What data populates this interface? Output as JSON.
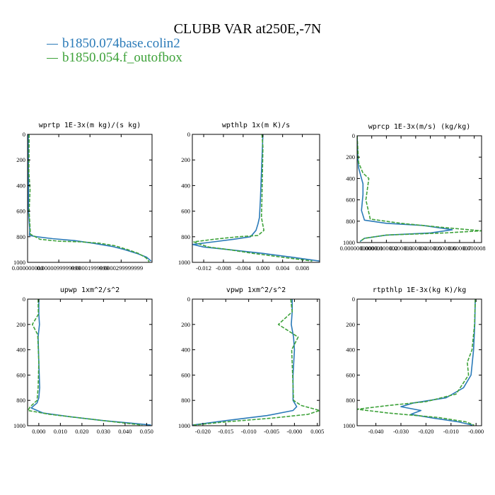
{
  "title": "CLUBB VAR at250E,-7N",
  "legend": [
    {
      "label": "b1850.074base.colin2",
      "color": "#2a7ab8"
    },
    {
      "label": "b1850.054.f_outofbox",
      "color": "#3ea23a"
    }
  ],
  "chart_data": [
    {
      "type": "line",
      "title": "wprtp  1E-3x(m kg)/(s kg)",
      "xlim": [
        0,
        3.99e-05
      ],
      "ylim": [
        1000,
        0
      ],
      "xticks": [
        0,
        1e-05,
        2e-05,
        3e-05
      ],
      "xtick_labels": [
        "0.000000000",
        "0.0000099999999",
        "0.00001999999",
        "0.0000299999999"
      ],
      "yticks": [
        0,
        200,
        400,
        600,
        800,
        1000
      ],
      "ytick_labels": [
        "0",
        "200",
        "400",
        "600",
        "800",
        "1000"
      ],
      "series": [
        {
          "name": "b1850.074base.colin2",
          "color": "#2a7ab8",
          "dashed": false,
          "x": [
            2e-07,
            3e-07,
            3e-07,
            7e-07,
            6e-07,
            3e-06,
            8e-06,
            1.5e-05,
            2.1e-05,
            2.7e-05,
            3.1e-05,
            3.5e-05,
            3.82e-05,
            3.96e-05
          ],
          "y": [
            0,
            300,
            600,
            750,
            790,
            800,
            815,
            830,
            850,
            875,
            900,
            930,
            960,
            990
          ]
        },
        {
          "name": "b1850.054.f_outofbox",
          "color": "#3ea23a",
          "dashed": true,
          "x": [
            5e-07,
            4e-07,
            8e-07,
            5e-07,
            9e-07,
            4e-06,
            1e-05,
            1.7e-05,
            2.3e-05,
            2.8e-05,
            3.2e-05,
            3.55e-05,
            3.8e-05,
            3.9e-05
          ],
          "y": [
            0,
            300,
            430,
            600,
            780,
            820,
            835,
            840,
            850,
            870,
            900,
            930,
            965,
            995
          ]
        }
      ]
    },
    {
      "type": "line",
      "title": "wpthlp  1x(m K)/s",
      "xlim": [
        -0.0143,
        0.0115
      ],
      "ylim": [
        1000,
        0
      ],
      "xticks": [
        -0.012,
        -0.008,
        -0.004,
        0.0,
        0.004,
        0.008
      ],
      "xtick_labels": [
        "-0.012",
        "-0.008",
        "-0.004",
        "0.000",
        "0.004",
        "0.008"
      ],
      "yticks": [
        0,
        200,
        400,
        600,
        800,
        1000
      ],
      "ytick_labels": [
        "0",
        "200",
        "400",
        "600",
        "800",
        "1000"
      ],
      "series": [
        {
          "name": "b1850.074base.colin2",
          "color": "#2a7ab8",
          "dashed": false,
          "x": [
            0.0,
            -0.0001,
            -0.0003,
            -0.0005,
            -0.0007,
            -0.001,
            -0.0014,
            -0.0025,
            -0.006,
            -0.01,
            -0.0142,
            -0.012,
            -0.007,
            0.0,
            0.006,
            0.0115
          ],
          "y": [
            0,
            100,
            300,
            500,
            650,
            700,
            750,
            800,
            820,
            840,
            860,
            880,
            900,
            930,
            960,
            990
          ]
        },
        {
          "name": "b1850.054.f_outofbox",
          "color": "#3ea23a",
          "dashed": true,
          "x": [
            -0.0002,
            0.0,
            -0.0001,
            -0.0002,
            -0.0003,
            0.0002,
            -0.001,
            -0.005,
            -0.01,
            -0.014,
            -0.013,
            -0.011,
            -0.007,
            -0.002,
            0.004,
            0.01
          ],
          "y": [
            0,
            100,
            300,
            500,
            650,
            750,
            790,
            800,
            820,
            840,
            855,
            880,
            900,
            930,
            960,
            990
          ]
        }
      ]
    },
    {
      "type": "line",
      "title": "wprcp  1E-3x(m/s) (kg/kg)",
      "xlim": [
        0,
        8.5e-06
      ],
      "ylim": [
        1000,
        0
      ],
      "xticks": [
        0,
        1e-06,
        2e-06,
        3e-06,
        4e-06,
        5e-06,
        6e-06,
        7e-06,
        8e-06
      ],
      "xtick_labels": [
        "0.0000000000",
        "0.000001",
        "0.000002",
        "0.000003",
        "0.000004",
        "0.000005",
        "0.000006",
        "0.000007",
        "0.000008"
      ],
      "yticks": [
        0,
        200,
        400,
        600,
        800,
        1000
      ],
      "ytick_labels": [
        "0",
        "200",
        "400",
        "600",
        "800",
        "1000"
      ],
      "series": [
        {
          "name": "b1850.074base.colin2",
          "color": "#2a7ab8",
          "dashed": false,
          "x": [
            0.0,
            5e-08,
            1e-07,
            3e-07,
            4e-07,
            4e-07,
            3e-07,
            5e-07,
            2e-06,
            4.5e-06,
            6.5e-06,
            5e-06,
            2e-06,
            5e-07,
            2e-07
          ],
          "y": [
            0,
            200,
            300,
            400,
            450,
            550,
            700,
            790,
            820,
            840,
            880,
            910,
            930,
            960,
            990
          ]
        },
        {
          "name": "b1850.054.f_outofbox",
          "color": "#3ea23a",
          "dashed": true,
          "x": [
            0.0,
            1e-07,
            4e-07,
            8e-07,
            7e-07,
            6e-07,
            9e-07,
            3e-06,
            6e-06,
            8.5e-06,
            6e-06,
            2e-06,
            5e-07,
            2e-07
          ],
          "y": [
            0,
            250,
            350,
            400,
            500,
            600,
            780,
            820,
            860,
            890,
            910,
            930,
            960,
            990
          ]
        }
      ]
    },
    {
      "type": "line",
      "title": "upwp  1xm^2/s^2",
      "xlim": [
        -0.0052,
        0.0525
      ],
      "ylim": [
        1000,
        0
      ],
      "xticks": [
        0.0,
        0.01,
        0.02,
        0.03,
        0.04,
        0.05
      ],
      "xtick_labels": [
        "0.000",
        "0.010",
        "0.020",
        "0.030",
        "0.040",
        "0.050"
      ],
      "yticks": [
        0,
        200,
        400,
        600,
        800,
        1000
      ],
      "ytick_labels": [
        "0",
        "200",
        "400",
        "600",
        "800",
        "1000"
      ],
      "series": [
        {
          "name": "b1850.074base.colin2",
          "color": "#2a7ab8",
          "dashed": false,
          "x": [
            0.0,
            0.0,
            0.0003,
            -0.0003,
            0.0,
            0.0004,
            0.0,
            -0.0008,
            -0.0035,
            0.002,
            0.015,
            0.03,
            0.043,
            0.052
          ],
          "y": [
            0,
            120,
            200,
            300,
            500,
            700,
            780,
            820,
            860,
            900,
            930,
            960,
            980,
            995
          ]
        },
        {
          "name": "b1850.054.f_outofbox",
          "color": "#3ea23a",
          "dashed": true,
          "x": [
            -0.0003,
            -0.0002,
            -0.003,
            -0.0005,
            0.0,
            -0.0003,
            -0.0008,
            -0.004,
            -0.005,
            0.005,
            0.02,
            0.035,
            0.048
          ],
          "y": [
            0,
            120,
            200,
            280,
            500,
            700,
            800,
            850,
            880,
            910,
            940,
            970,
            995
          ]
        }
      ]
    },
    {
      "type": "line",
      "title": "vpwp  1xm^2/s^2",
      "xlim": [
        -0.0223,
        0.0055
      ],
      "ylim": [
        1000,
        0
      ],
      "xticks": [
        -0.02,
        -0.015,
        -0.01,
        -0.005,
        0.0,
        0.005
      ],
      "xtick_labels": [
        "-0.020",
        "-0.015",
        "-0.010",
        "-0.005",
        "-0.000",
        "0.005"
      ],
      "yticks": [
        0,
        200,
        400,
        600,
        800,
        1000
      ],
      "ytick_labels": [
        "0",
        "200",
        "400",
        "600",
        "800",
        "1000"
      ],
      "series": [
        {
          "name": "b1850.074base.colin2",
          "color": "#2a7ab8",
          "dashed": false,
          "x": [
            -0.0005,
            -0.0005,
            -0.0007,
            -0.0002,
            0.0,
            -0.0003,
            -0.0003,
            0.0005,
            -0.0003,
            -0.006,
            -0.015,
            -0.0222
          ],
          "y": [
            0,
            100,
            200,
            300,
            400,
            600,
            800,
            850,
            880,
            920,
            960,
            995
          ]
        },
        {
          "name": "b1850.054.f_outofbox",
          "color": "#3ea23a",
          "dashed": true,
          "x": [
            -0.0008,
            -0.0005,
            -0.0035,
            0.0008,
            -0.0006,
            -0.0004,
            -0.0002,
            0.0015,
            0.0055,
            0.003,
            -0.005,
            -0.015,
            -0.022
          ],
          "y": [
            0,
            100,
            200,
            300,
            400,
            600,
            800,
            840,
            880,
            910,
            940,
            970,
            995
          ]
        }
      ]
    },
    {
      "type": "line",
      "title": "rtpthlp  1E-3x(kg K)/kg",
      "xlim": [
        -0.0475,
        0.0022
      ],
      "ylim": [
        1000,
        0
      ],
      "xticks": [
        -0.04,
        -0.03,
        -0.02,
        -0.01,
        0.0
      ],
      "xtick_labels": [
        "-0.040",
        "-0.030",
        "-0.020",
        "-0.010",
        "-0.000"
      ],
      "yticks": [
        0,
        200,
        400,
        600,
        800,
        1000
      ],
      "ytick_labels": [
        "0",
        "200",
        "400",
        "600",
        "800",
        "1000"
      ],
      "series": [
        {
          "name": "b1850.074base.colin2",
          "color": "#2a7ab8",
          "dashed": false,
          "x": [
            -0.0003,
            -0.0005,
            -0.001,
            -0.002,
            -0.005,
            -0.012,
            -0.025,
            -0.03,
            -0.022,
            -0.026,
            -0.017,
            -0.007,
            -0.0015
          ],
          "y": [
            0,
            200,
            400,
            600,
            700,
            780,
            820,
            850,
            880,
            910,
            940,
            970,
            995
          ]
        },
        {
          "name": "b1850.054.f_outofbox",
          "color": "#3ea23a",
          "dashed": true,
          "x": [
            -0.0003,
            -0.0006,
            -0.0016,
            -0.0035,
            -0.003,
            -0.008,
            -0.02,
            -0.035,
            -0.0475,
            -0.035,
            -0.015,
            -0.004,
            -0.0008
          ],
          "y": [
            0,
            200,
            400,
            500,
            600,
            750,
            810,
            840,
            870,
            900,
            935,
            970,
            995
          ]
        }
      ]
    }
  ]
}
